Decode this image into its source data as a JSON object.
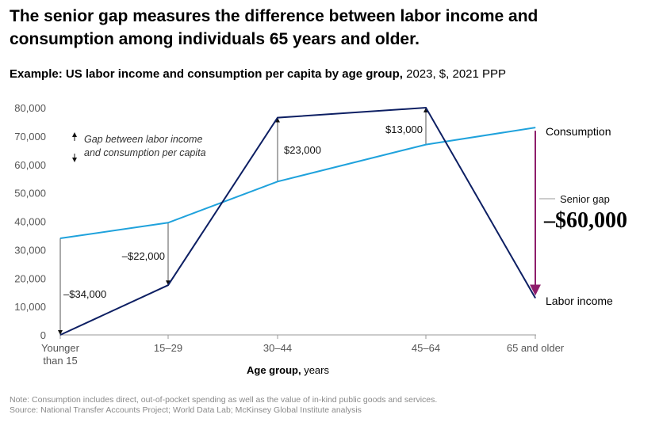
{
  "title": "The senior gap measures the difference between labor income and consumption among individuals 65 years and older.",
  "subtitle": {
    "bold": "Example: US labor income and consumption per capita by age group,",
    "rest": " 2023, $, 2021 PPP"
  },
  "legend_note": {
    "line1": "Gap between labor income",
    "line2": "and consumption per capita"
  },
  "senior_gap": {
    "label": "Senior gap",
    "value": "–$60,000"
  },
  "x_axis_title": {
    "bold": "Age group,",
    "rest": " years"
  },
  "note": {
    "line1": "Note: Consumption includes direct, out-of-pocket spending as well as the value of in-kind public goods and services.",
    "line2": "Source: National Transfer Accounts Project; World Data Lab; McKinsey Global Institute analysis"
  },
  "colors": {
    "consumption": "#1fa2dc",
    "labor_income": "#0d1f63",
    "senior_gap": "#8e1d6b",
    "axis": "#999999"
  },
  "chart_data": {
    "type": "line",
    "categories": [
      "Younger than 15",
      "15–29",
      "30–44",
      "45–64",
      "65 and older"
    ],
    "category_lines": [
      [
        "Younger",
        "than 15"
      ],
      [
        "15–29"
      ],
      [
        "30–44"
      ],
      [
        "45–64"
      ],
      [
        "65 and older"
      ]
    ],
    "series": [
      {
        "name": "Consumption",
        "values": [
          34000,
          39500,
          54000,
          67000,
          73000
        ]
      },
      {
        "name": "Labor income",
        "values": [
          0,
          17500,
          76500,
          80000,
          13000
        ]
      }
    ],
    "gap_labels": [
      "–$34,000",
      "–$22,000",
      "$23,000",
      "$13,000"
    ],
    "ylim": [
      0,
      80000
    ],
    "yticks": [
      0,
      10000,
      20000,
      30000,
      40000,
      50000,
      60000,
      70000,
      80000
    ],
    "ytick_labels": [
      "0",
      "10,000",
      "20,000",
      "30,000",
      "40,000",
      "50,000",
      "60,000",
      "70,000",
      "80,000"
    ]
  }
}
